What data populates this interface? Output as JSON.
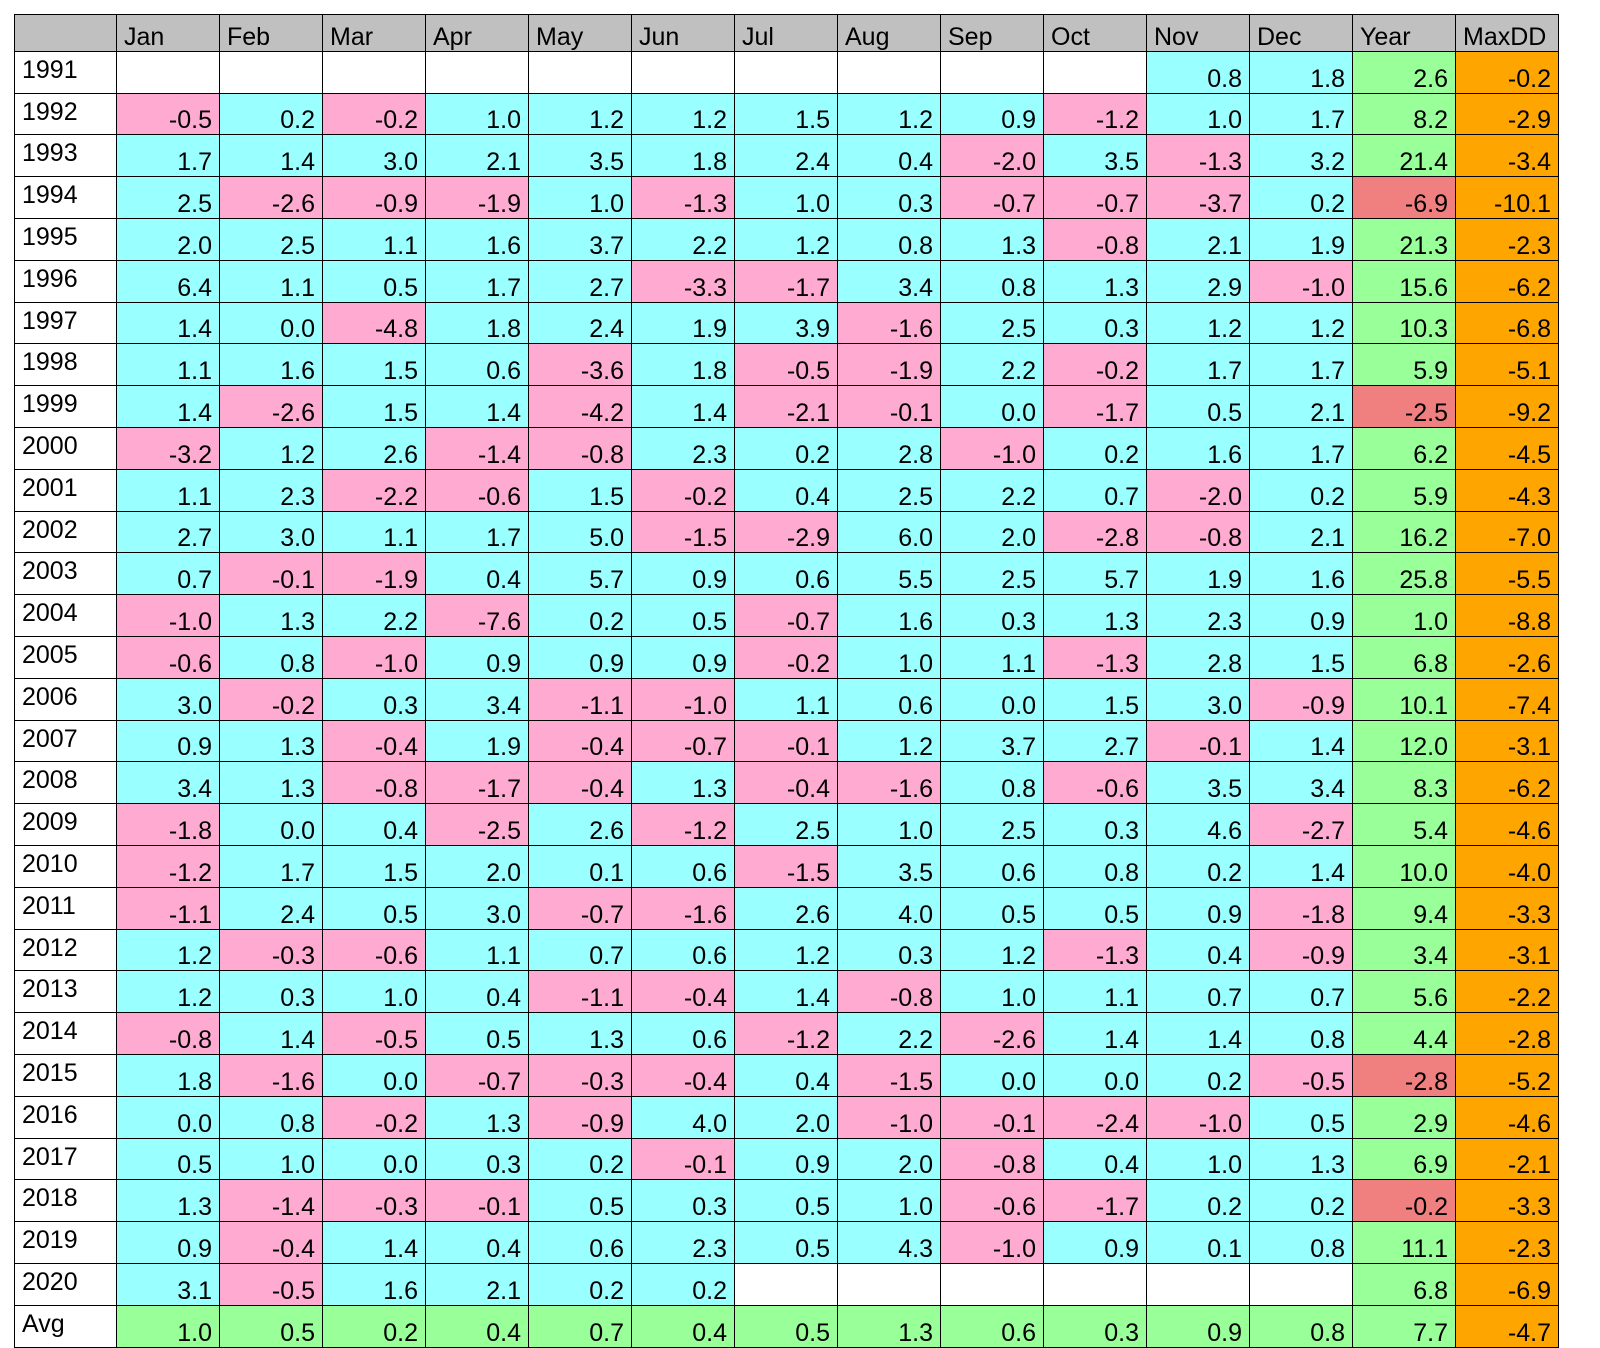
{
  "colors": {
    "header": "#c0c0c0",
    "positive": "#99ffff",
    "negative": "#ffaad0",
    "year_positive": "#99ff99",
    "year_negative": "#f08080",
    "maxdd": "#ffa500",
    "avg": "#99ff99",
    "empty": "#ffffff"
  },
  "chart_data": {
    "type": "table",
    "columns": [
      "Jan",
      "Feb",
      "Mar",
      "Apr",
      "May",
      "Jun",
      "Jul",
      "Aug",
      "Sep",
      "Oct",
      "Nov",
      "Dec",
      "Year",
      "MaxDD"
    ],
    "rows": [
      {
        "label": "1991",
        "values": [
          "",
          "",
          "",
          "",
          "",
          "",
          "",
          "",
          "",
          "",
          "0.8",
          "1.8",
          "2.6",
          "-0.2"
        ]
      },
      {
        "label": "1992",
        "values": [
          "-0.5",
          "0.2",
          "-0.2",
          "1.0",
          "1.2",
          "1.2",
          "1.5",
          "1.2",
          "0.9",
          "-1.2",
          "1.0",
          "1.7",
          "8.2",
          "-2.9"
        ]
      },
      {
        "label": "1993",
        "values": [
          "1.7",
          "1.4",
          "3.0",
          "2.1",
          "3.5",
          "1.8",
          "2.4",
          "0.4",
          "-2.0",
          "3.5",
          "-1.3",
          "3.2",
          "21.4",
          "-3.4"
        ]
      },
      {
        "label": "1994",
        "values": [
          "2.5",
          "-2.6",
          "-0.9",
          "-1.9",
          "1.0",
          "-1.3",
          "1.0",
          "0.3",
          "-0.7",
          "-0.7",
          "-3.7",
          "0.2",
          "-6.9",
          "-10.1"
        ]
      },
      {
        "label": "1995",
        "values": [
          "2.0",
          "2.5",
          "1.1",
          "1.6",
          "3.7",
          "2.2",
          "1.2",
          "0.8",
          "1.3",
          "-0.8",
          "2.1",
          "1.9",
          "21.3",
          "-2.3"
        ]
      },
      {
        "label": "1996",
        "values": [
          "6.4",
          "1.1",
          "0.5",
          "1.7",
          "2.7",
          "-3.3",
          "-1.7",
          "3.4",
          "0.8",
          "1.3",
          "2.9",
          "-1.0",
          "15.6",
          "-6.2"
        ]
      },
      {
        "label": "1997",
        "values": [
          "1.4",
          "0.0",
          "-4.8",
          "1.8",
          "2.4",
          "1.9",
          "3.9",
          "-1.6",
          "2.5",
          "0.3",
          "1.2",
          "1.2",
          "10.3",
          "-6.8"
        ]
      },
      {
        "label": "1998",
        "values": [
          "1.1",
          "1.6",
          "1.5",
          "0.6",
          "-3.6",
          "1.8",
          "-0.5",
          "-1.9",
          "2.2",
          "-0.2",
          "1.7",
          "1.7",
          "5.9",
          "-5.1"
        ]
      },
      {
        "label": "1999",
        "values": [
          "1.4",
          "-2.6",
          "1.5",
          "1.4",
          "-4.2",
          "1.4",
          "-2.1",
          "-0.1",
          "0.0",
          "-1.7",
          "0.5",
          "2.1",
          "-2.5",
          "-9.2"
        ]
      },
      {
        "label": "2000",
        "values": [
          "-3.2",
          "1.2",
          "2.6",
          "-1.4",
          "-0.8",
          "2.3",
          "0.2",
          "2.8",
          "-1.0",
          "0.2",
          "1.6",
          "1.7",
          "6.2",
          "-4.5"
        ]
      },
      {
        "label": "2001",
        "values": [
          "1.1",
          "2.3",
          "-2.2",
          "-0.6",
          "1.5",
          "-0.2",
          "0.4",
          "2.5",
          "2.2",
          "0.7",
          "-2.0",
          "0.2",
          "5.9",
          "-4.3"
        ]
      },
      {
        "label": "2002",
        "values": [
          "2.7",
          "3.0",
          "1.1",
          "1.7",
          "5.0",
          "-1.5",
          "-2.9",
          "6.0",
          "2.0",
          "-2.8",
          "-0.8",
          "2.1",
          "16.2",
          "-7.0"
        ]
      },
      {
        "label": "2003",
        "values": [
          "0.7",
          "-0.1",
          "-1.9",
          "0.4",
          "5.7",
          "0.9",
          "0.6",
          "5.5",
          "2.5",
          "5.7",
          "1.9",
          "1.6",
          "25.8",
          "-5.5"
        ]
      },
      {
        "label": "2004",
        "values": [
          "-1.0",
          "1.3",
          "2.2",
          "-7.6",
          "0.2",
          "0.5",
          "-0.7",
          "1.6",
          "0.3",
          "1.3",
          "2.3",
          "0.9",
          "1.0",
          "-8.8"
        ]
      },
      {
        "label": "2005",
        "values": [
          "-0.6",
          "0.8",
          "-1.0",
          "0.9",
          "0.9",
          "0.9",
          "-0.2",
          "1.0",
          "1.1",
          "-1.3",
          "2.8",
          "1.5",
          "6.8",
          "-2.6"
        ]
      },
      {
        "label": "2006",
        "values": [
          "3.0",
          "-0.2",
          "0.3",
          "3.4",
          "-1.1",
          "-1.0",
          "1.1",
          "0.6",
          "0.0",
          "1.5",
          "3.0",
          "-0.9",
          "10.1",
          "-7.4"
        ]
      },
      {
        "label": "2007",
        "values": [
          "0.9",
          "1.3",
          "-0.4",
          "1.9",
          "-0.4",
          "-0.7",
          "-0.1",
          "1.2",
          "3.7",
          "2.7",
          "-0.1",
          "1.4",
          "12.0",
          "-3.1"
        ]
      },
      {
        "label": "2008",
        "values": [
          "3.4",
          "1.3",
          "-0.8",
          "-1.7",
          "-0.4",
          "1.3",
          "-0.4",
          "-1.6",
          "0.8",
          "-0.6",
          "3.5",
          "3.4",
          "8.3",
          "-6.2"
        ]
      },
      {
        "label": "2009",
        "values": [
          "-1.8",
          "0.0",
          "0.4",
          "-2.5",
          "2.6",
          "-1.2",
          "2.5",
          "1.0",
          "2.5",
          "0.3",
          "4.6",
          "-2.7",
          "5.4",
          "-4.6"
        ]
      },
      {
        "label": "2010",
        "values": [
          "-1.2",
          "1.7",
          "1.5",
          "2.0",
          "0.1",
          "0.6",
          "-1.5",
          "3.5",
          "0.6",
          "0.8",
          "0.2",
          "1.4",
          "10.0",
          "-4.0"
        ]
      },
      {
        "label": "2011",
        "values": [
          "-1.1",
          "2.4",
          "0.5",
          "3.0",
          "-0.7",
          "-1.6",
          "2.6",
          "4.0",
          "0.5",
          "0.5",
          "0.9",
          "-1.8",
          "9.4",
          "-3.3"
        ]
      },
      {
        "label": "2012",
        "values": [
          "1.2",
          "-0.3",
          "-0.6",
          "1.1",
          "0.7",
          "0.6",
          "1.2",
          "0.3",
          "1.2",
          "-1.3",
          "0.4",
          "-0.9",
          "3.4",
          "-3.1"
        ]
      },
      {
        "label": "2013",
        "values": [
          "1.2",
          "0.3",
          "1.0",
          "0.4",
          "-1.1",
          "-0.4",
          "1.4",
          "-0.8",
          "1.0",
          "1.1",
          "0.7",
          "0.7",
          "5.6",
          "-2.2"
        ]
      },
      {
        "label": "2014",
        "values": [
          "-0.8",
          "1.4",
          "-0.5",
          "0.5",
          "1.3",
          "0.6",
          "-1.2",
          "2.2",
          "-2.6",
          "1.4",
          "1.4",
          "0.8",
          "4.4",
          "-2.8"
        ]
      },
      {
        "label": "2015",
        "values": [
          "1.8",
          "-1.6",
          "0.0",
          "-0.7",
          "-0.3",
          "-0.4",
          "0.4",
          "-1.5",
          "0.0",
          "0.0",
          "0.2",
          "-0.5",
          "-2.8",
          "-5.2"
        ]
      },
      {
        "label": "2016",
        "values": [
          "0.0",
          "0.8",
          "-0.2",
          "1.3",
          "-0.9",
          "4.0",
          "2.0",
          "-1.0",
          "-0.1",
          "-2.4",
          "-1.0",
          "0.5",
          "2.9",
          "-4.6"
        ]
      },
      {
        "label": "2017",
        "values": [
          "0.5",
          "1.0",
          "0.0",
          "0.3",
          "0.2",
          "-0.1",
          "0.9",
          "2.0",
          "-0.8",
          "0.4",
          "1.0",
          "1.3",
          "6.9",
          "-2.1"
        ]
      },
      {
        "label": "2018",
        "values": [
          "1.3",
          "-1.4",
          "-0.3",
          "-0.1",
          "0.5",
          "0.3",
          "0.5",
          "1.0",
          "-0.6",
          "-1.7",
          "0.2",
          "0.2",
          "-0.2",
          "-3.3"
        ]
      },
      {
        "label": "2019",
        "values": [
          "0.9",
          "-0.4",
          "1.4",
          "0.4",
          "0.6",
          "2.3",
          "0.5",
          "4.3",
          "-1.0",
          "0.9",
          "0.1",
          "0.8",
          "11.1",
          "-2.3"
        ]
      },
      {
        "label": "2020",
        "values": [
          "3.1",
          "-0.5",
          "1.6",
          "2.1",
          "0.2",
          "0.2",
          "",
          "",
          "",
          "",
          "",
          "",
          "6.8",
          "-6.9"
        ]
      },
      {
        "label": "Avg",
        "values": [
          "1.0",
          "0.5",
          "0.2",
          "0.4",
          "0.7",
          "0.4",
          "0.5",
          "1.3",
          "0.6",
          "0.3",
          "0.9",
          "0.8",
          "7.7",
          "-4.7"
        ]
      }
    ]
  }
}
